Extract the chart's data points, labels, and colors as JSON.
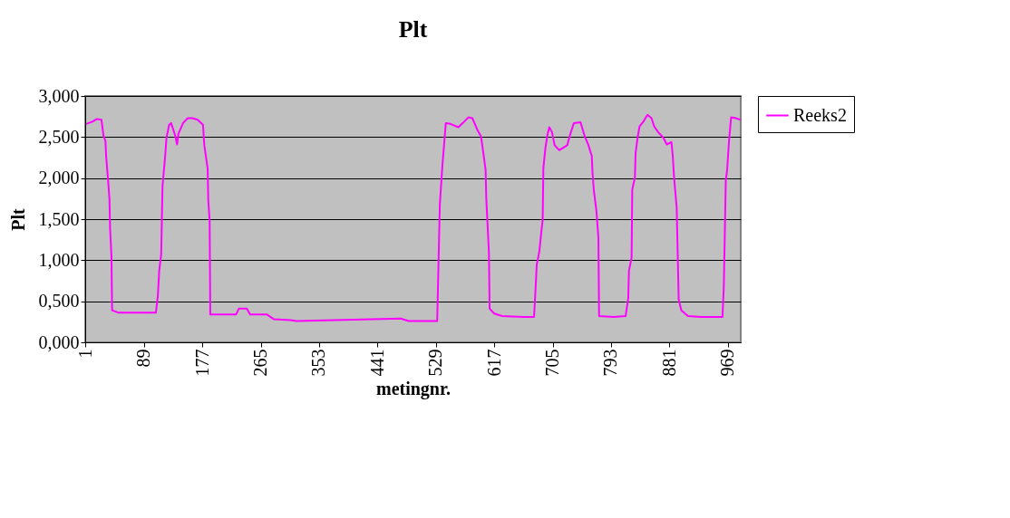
{
  "chart_data": {
    "type": "line",
    "title": "Plt",
    "xlabel": "metingnr.",
    "ylabel": "Plt",
    "x": [
      2,
      12,
      18,
      25,
      28,
      31,
      32,
      35,
      37,
      38,
      40,
      41,
      51,
      107,
      110,
      112,
      115,
      117,
      121,
      123,
      127,
      130,
      136,
      139,
      141,
      148,
      155,
      162,
      170,
      178,
      180,
      185,
      186,
      188,
      189,
      196,
      228,
      232,
      244,
      249,
      274,
      285,
      310,
      319,
      476,
      488,
      531,
      535,
      539,
      542,
      544,
      551,
      563,
      572,
      578,
      584,
      592,
      597,
      600,
      604,
      605,
      609,
      610,
      617,
      629,
      661,
      677,
      679,
      681,
      685,
      688,
      690,
      691,
      694,
      697,
      700,
      704,
      708,
      715,
      727,
      731,
      737,
      747,
      753,
      759,
      764,
      765,
      767,
      771,
      774,
      775,
      797,
      815,
      819,
      820,
      824,
      825,
      829,
      830,
      833,
      836,
      842,
      848,
      854,
      858,
      864,
      872,
      877,
      884,
      886,
      888,
      892,
      895,
      899,
      909,
      929,
      961,
      963,
      966,
      968,
      971,
      974,
      981,
      988
    ],
    "series": [
      {
        "name": "Reeks2",
        "color": "#ff00ff",
        "values": [
          2.66,
          2.69,
          2.72,
          2.71,
          2.52,
          2.45,
          2.27,
          1.97,
          1.75,
          1.38,
          1.06,
          0.39,
          0.36,
          0.36,
          0.57,
          0.87,
          1.07,
          1.9,
          2.27,
          2.49,
          2.65,
          2.67,
          2.52,
          2.41,
          2.54,
          2.67,
          2.73,
          2.73,
          2.71,
          2.65,
          2.4,
          2.12,
          1.72,
          1.49,
          0.34,
          0.34,
          0.34,
          0.41,
          0.41,
          0.34,
          0.34,
          0.28,
          0.27,
          0.26,
          0.29,
          0.26,
          0.26,
          1.68,
          2.17,
          2.47,
          2.67,
          2.66,
          2.62,
          2.69,
          2.74,
          2.73,
          2.58,
          2.51,
          2.34,
          2.1,
          1.75,
          1.09,
          0.41,
          0.35,
          0.32,
          0.31,
          0.31,
          0.61,
          0.94,
          1.11,
          1.35,
          1.49,
          2.12,
          2.36,
          2.52,
          2.62,
          2.56,
          2.4,
          2.34,
          2.4,
          2.52,
          2.67,
          2.68,
          2.52,
          2.4,
          2.27,
          2.08,
          1.86,
          1.6,
          1.27,
          0.32,
          0.31,
          0.32,
          0.54,
          0.87,
          1.03,
          1.86,
          2.01,
          2.3,
          2.49,
          2.63,
          2.69,
          2.77,
          2.73,
          2.63,
          2.56,
          2.49,
          2.41,
          2.44,
          2.28,
          2.01,
          1.64,
          0.52,
          0.39,
          0.32,
          0.31,
          0.31,
          0.68,
          1.97,
          2.1,
          2.47,
          2.74,
          2.73,
          2.71
        ]
      }
    ],
    "xlim": [
      0.5,
      988.5
    ],
    "xticks": [
      1,
      89,
      177,
      265,
      353,
      441,
      529,
      617,
      705,
      793,
      881,
      969
    ],
    "ylim": [
      0,
      3
    ],
    "yticks": [
      {
        "value": 0,
        "label": "0,000"
      },
      {
        "value": 0.5,
        "label": "0,500"
      },
      {
        "value": 1,
        "label": "1,000"
      },
      {
        "value": 1.5,
        "label": "1,500"
      },
      {
        "value": 2,
        "label": "2,000"
      },
      {
        "value": 2.5,
        "label": "2,500"
      },
      {
        "value": 3,
        "label": "3,000"
      }
    ],
    "grid": "y",
    "legend": "right",
    "marker": "none",
    "line_style": "solid"
  }
}
